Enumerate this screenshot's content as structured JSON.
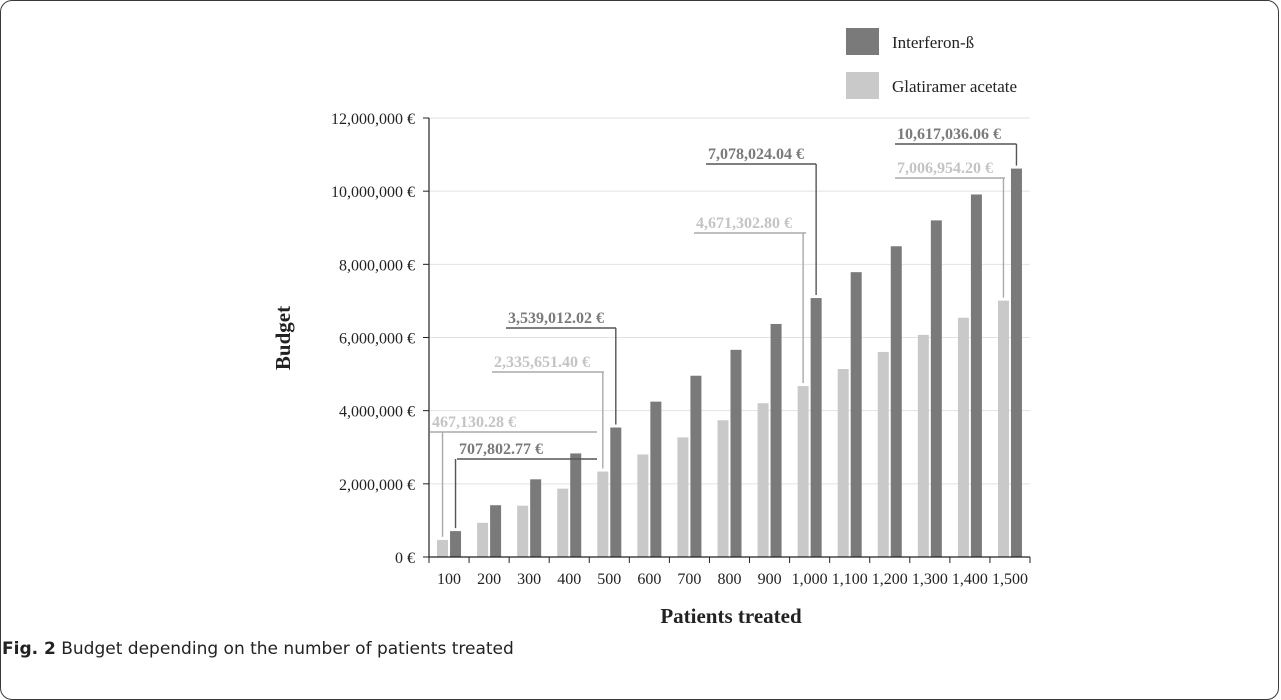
{
  "chart_data": {
    "type": "bar",
    "xlabel": "Patients treated",
    "ylabel": "Budget",
    "ylim": [
      0,
      12000000
    ],
    "yticks": [
      "0 €",
      "2,000,000 €",
      "4,000,000 €",
      "6,000,000 €",
      "8,000,000 €",
      "10,000,000 €",
      "12,000,000 €"
    ],
    "categories": [
      "100",
      "200",
      "300",
      "400",
      "500",
      "600",
      "700",
      "800",
      "900",
      "1,000",
      "1,100",
      "1,200",
      "1,300",
      "1,400",
      "1,500"
    ],
    "series": [
      {
        "name": "Interferon-ß",
        "color": "#7a7a7a",
        "values": [
          707802.77,
          1415605.54,
          2123408.31,
          2831211.08,
          3539012.02,
          4246814.79,
          4954617.56,
          5662420.33,
          6370223.1,
          7078024.04,
          7785826.81,
          8493629.58,
          9201432.35,
          9909235.12,
          10617036.06
        ]
      },
      {
        "name": "Glatiramer acetate",
        "color": "#c9c9c9",
        "values": [
          467130.28,
          934260.56,
          1401390.84,
          1868521.12,
          2335651.4,
          2802781.68,
          3269911.96,
          3737042.24,
          4204172.52,
          4671302.8,
          5138433.08,
          5605563.36,
          6072693.64,
          6539823.92,
          7006954.2
        ]
      }
    ],
    "legend_position": "top-right",
    "grid": true,
    "annotations": [
      {
        "series": 1,
        "index": 0,
        "text": "467,130.28 €"
      },
      {
        "series": 0,
        "index": 0,
        "text": "707,802.77 €"
      },
      {
        "series": 1,
        "index": 4,
        "text": "2,335,651.40 €"
      },
      {
        "series": 0,
        "index": 4,
        "text": "3,539,012.02 €"
      },
      {
        "series": 1,
        "index": 9,
        "text": "4,671,302.80 €"
      },
      {
        "series": 0,
        "index": 9,
        "text": "7,078,024.04 €"
      },
      {
        "series": 1,
        "index": 14,
        "text": "7,006,954.20 €"
      },
      {
        "series": 0,
        "index": 14,
        "text": "10,617,036.06 €"
      }
    ]
  },
  "caption": {
    "label": "Fig. 2",
    "text": " Budget depending on the number of patients treated"
  }
}
